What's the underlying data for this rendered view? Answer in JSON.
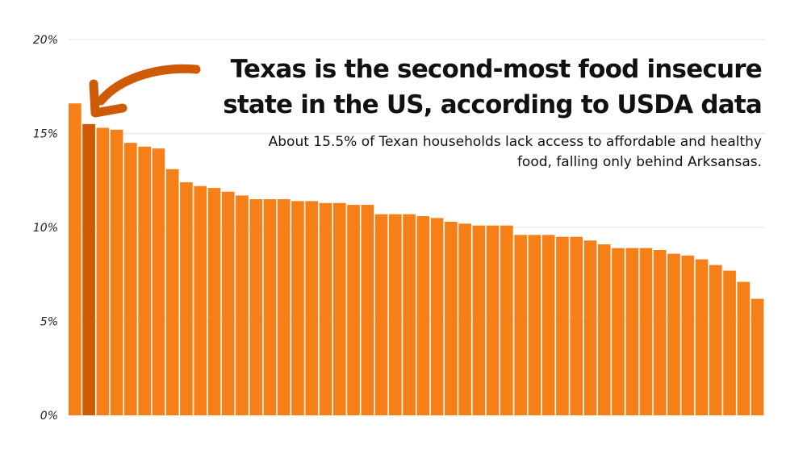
{
  "chart_data": {
    "type": "bar",
    "title": "Texas is the second-most food insecure state in the US, according to USDA data",
    "subtitle": "About 15.5% of Texan households lack access to affordable and healthy food, falling only behind Arksansas.",
    "xlabel": "",
    "ylabel": "",
    "ylim": [
      0,
      20
    ],
    "yticks": [
      0,
      5,
      10,
      15,
      20
    ],
    "ytick_labels": [
      "0%",
      "5%",
      "10%",
      "15%",
      "20%"
    ],
    "grid": true,
    "values": [
      16.6,
      15.5,
      15.3,
      15.2,
      14.5,
      14.3,
      14.2,
      13.1,
      12.4,
      12.2,
      12.1,
      11.9,
      11.7,
      11.5,
      11.5,
      11.5,
      11.4,
      11.4,
      11.3,
      11.3,
      11.2,
      11.2,
      10.7,
      10.7,
      10.7,
      10.6,
      10.5,
      10.3,
      10.2,
      10.1,
      10.1,
      10.1,
      9.6,
      9.6,
      9.6,
      9.5,
      9.5,
      9.3,
      9.1,
      8.9,
      8.9,
      8.9,
      8.8,
      8.6,
      8.5,
      8.3,
      8.0,
      7.7,
      7.1,
      6.2
    ],
    "highlight_index": 1,
    "colors": {
      "bar": "#f77f17",
      "highlight": "#cf5a04",
      "arrow": "#cf5a04",
      "grid": "#e3e3e3"
    }
  }
}
